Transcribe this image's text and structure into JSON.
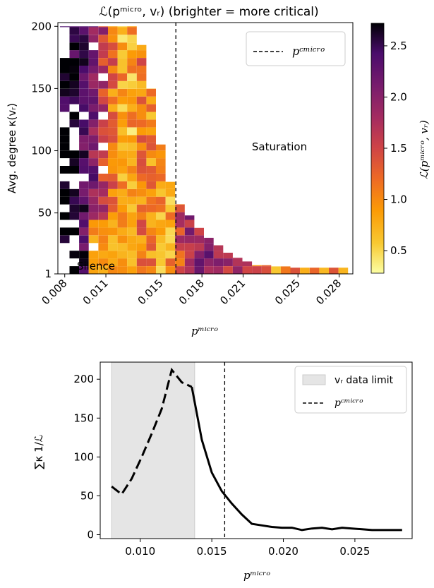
{
  "chart_data": [
    {
      "type": "heatmap",
      "title": "ℒ(pᵐⁱᶜʳᵒ, vᵣ)  (brighter = more critical)",
      "xlabel": "pᵐⁱᶜʳᵒ",
      "ylabel": "Avg. degree κ(vᵣ)",
      "xlim": [
        0.0075,
        0.029
      ],
      "ylim": [
        1,
        203
      ],
      "x_ticks": [
        0.008,
        0.011,
        0.015,
        0.018,
        0.021,
        0.025,
        0.028
      ],
      "x_tick_labels": [
        "0.008",
        "0.011",
        "0.015",
        "0.018",
        "0.021",
        "0.025",
        "0.028"
      ],
      "y_ticks": [
        1,
        50,
        100,
        150,
        200
      ],
      "y_tick_labels": [
        "1",
        "50",
        "100",
        "150",
        "200"
      ],
      "critical_p": 0.0161,
      "legend": {
        "entries": [
          "pᶜᵐⁱᶜʳᵒ"
        ],
        "placement": "top-right"
      },
      "annotations": [
        "Saturation",
        "Silence"
      ],
      "colorbar": {
        "label": "ℒ(pᵐⁱᶜʳᵒ, vᵣ)",
        "range": [
          0.28,
          2.72
        ],
        "ticks": [
          0.5,
          1.0,
          1.5,
          2.0,
          2.5
        ],
        "tick_labels": [
          "0.5",
          "1.0",
          "1.5",
          "2.0",
          "2.5"
        ],
        "colormap": "inferno_r"
      },
      "x_bins": [
        0.008,
        0.0087,
        0.0094,
        0.0101,
        0.0108,
        0.0115,
        0.0122,
        0.0129,
        0.0136,
        0.0143,
        0.015,
        0.0157,
        0.0164,
        0.0171,
        0.0178,
        0.0185,
        0.0192,
        0.0199,
        0.0206,
        0.0213,
        0.022,
        0.0227,
        0.0234,
        0.0241,
        0.0248,
        0.0255,
        0.0262,
        0.0269,
        0.0276,
        0.0283
      ],
      "bin_width": 0.0007
    },
    {
      "type": "line",
      "xlabel": "pᵐⁱᶜʳᵒ",
      "ylabel": "∑κ 1/ℒ",
      "xlim": [
        0.0072,
        0.029
      ],
      "ylim": [
        -5,
        222
      ],
      "x_ticks": [
        0.01,
        0.015,
        0.02,
        0.025
      ],
      "x_tick_labels": [
        "0.010",
        "0.015",
        "0.020",
        "0.025"
      ],
      "y_ticks": [
        0,
        50,
        100,
        150,
        200
      ],
      "y_tick_labels": [
        "0",
        "50",
        "100",
        "150",
        "200"
      ],
      "shaded_region": {
        "x": [
          0.008,
          0.0138
        ],
        "label": "vᵣ data limit"
      },
      "critical_p": 0.0159,
      "legend": {
        "entries": [
          "vᵣ data limit",
          "pᶜᵐⁱᶜʳᵒ"
        ],
        "placement": "top-right"
      },
      "series": [
        {
          "style": "dashed",
          "x": [
            0.008,
            0.0087,
            0.0094,
            0.0101,
            0.0108,
            0.0115,
            0.0122,
            0.0129,
            0.0136
          ],
          "y": [
            62,
            52,
            72,
            100,
            130,
            162,
            212,
            196,
            190
          ]
        },
        {
          "style": "solid",
          "x": [
            0.0136,
            0.0143,
            0.015,
            0.0157,
            0.0164,
            0.0171,
            0.0178,
            0.0185,
            0.0192,
            0.0199,
            0.0206,
            0.0213,
            0.022,
            0.0227,
            0.0234,
            0.0241,
            0.0248,
            0.0255,
            0.0262,
            0.0269,
            0.0276,
            0.0283
          ],
          "y": [
            190,
            122,
            80,
            56,
            40,
            26,
            14,
            12,
            10,
            9,
            9,
            6,
            8,
            9,
            7,
            9,
            8,
            7,
            6,
            6,
            6,
            6
          ]
        }
      ]
    }
  ]
}
